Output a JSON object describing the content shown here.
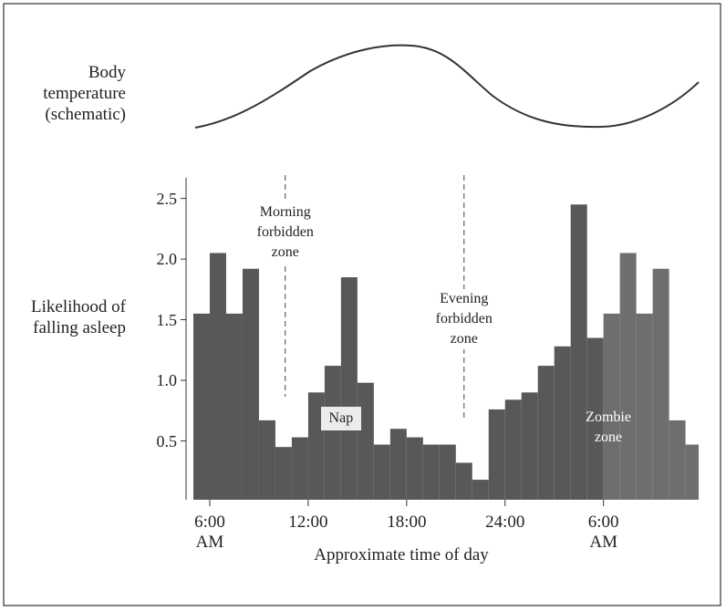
{
  "chart_data": {
    "type": "histogram",
    "title": "Body temperature (schematic)",
    "ylabel": "Likelihood of falling asleep",
    "xlabel": "Approximate time of day",
    "bins": [
      5,
      6,
      7,
      8,
      9,
      10,
      11,
      12,
      13,
      14,
      15,
      16,
      17,
      18,
      19,
      20,
      21,
      22,
      23,
      24,
      25,
      26,
      27,
      28,
      29,
      30,
      31,
      32,
      33,
      34,
      35,
      35.8
    ],
    "values": [
      1.55,
      2.05,
      1.55,
      1.92,
      0.67,
      0.45,
      0.53,
      0.9,
      1.12,
      1.85,
      0.98,
      0.47,
      0.6,
      0.53,
      0.47,
      0.47,
      0.32,
      0.18,
      0.76,
      0.84,
      0.9,
      1.12,
      1.28,
      2.45,
      1.35,
      1.55,
      2.05,
      1.55,
      1.92,
      0.67,
      0.47
    ],
    "colors": [
      "#585858",
      "#585858",
      "#585858",
      "#585858",
      "#585858",
      "#585858",
      "#585858",
      "#585858",
      "#585858",
      "#585858",
      "#585858",
      "#585858",
      "#585858",
      "#585858",
      "#585858",
      "#585858",
      "#585858",
      "#585858",
      "#585858",
      "#585858",
      "#585858",
      "#585858",
      "#585858",
      "#585858",
      "#585858",
      "#6e6e6e",
      "#6e6e6e",
      "#6e6e6e",
      "#6e6e6e",
      "#6e6e6e",
      "#6e6e6e"
    ],
    "xlim": [
      5,
      35.8
    ],
    "ylim": [
      0,
      2.67
    ],
    "yticks": [
      0.5,
      {
        "value": 1,
        "label": "1.0"
      },
      1.5,
      {
        "value": 2,
        "label": "2.0"
      },
      2.5
    ],
    "xticks": [
      {
        "value": 6,
        "label": "6:00 AM"
      },
      {
        "value": 12,
        "label": "12:00"
      },
      {
        "value": 18,
        "label": "18:00"
      },
      {
        "value": 24,
        "label": "24:00"
      },
      {
        "value": 30,
        "label": "6:00 AM"
      }
    ],
    "annotations": [
      {
        "text": "Morning forbidden zone",
        "x": 10.6
      },
      {
        "text": "Evening forbidden zone",
        "x": 21.5
      },
      {
        "text": "Nap",
        "x": 14
      },
      {
        "text": "Zombie zone",
        "x": 30.3
      }
    ]
  }
}
